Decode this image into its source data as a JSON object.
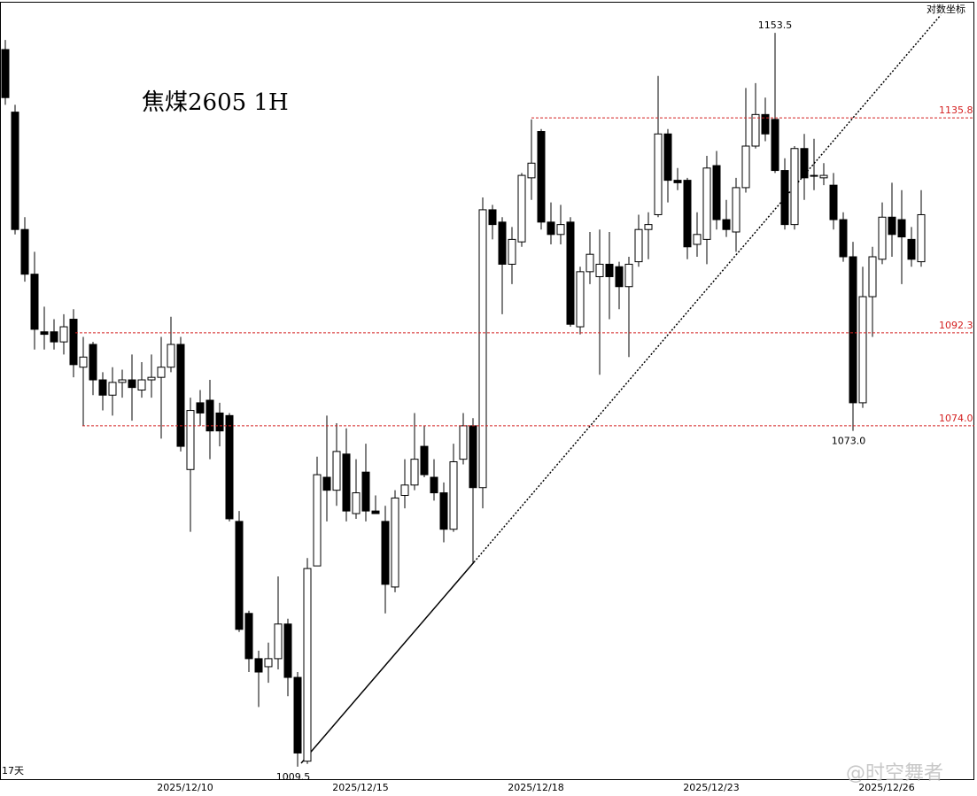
{
  "chart_data": {
    "type": "candlestick",
    "title": "焦煤2605 1H",
    "scale_label": "对数坐标",
    "log_scale": true,
    "ylim": [
      1007.2,
      1160.4
    ],
    "up_color": "#ffffff",
    "down_color": "#000000",
    "categories": [
      null,
      null,
      null,
      null,
      null,
      null,
      null,
      null,
      null,
      null,
      null,
      null,
      null,
      null,
      null,
      null,
      null,
      null,
      "2025/12/10",
      null,
      null,
      null,
      null,
      null,
      null,
      null,
      null,
      null,
      null,
      null,
      null,
      null,
      null,
      null,
      null,
      null,
      "2025/12/15",
      null,
      null,
      null,
      null,
      null,
      null,
      null,
      null,
      null,
      null,
      null,
      null,
      null,
      null,
      null,
      null,
      null,
      "2025/12/18",
      null,
      null,
      null,
      null,
      null,
      null,
      null,
      null,
      null,
      null,
      null,
      null,
      null,
      null,
      null,
      null,
      null,
      "2025/12/23",
      null,
      null,
      null,
      null,
      null,
      null,
      null,
      null,
      null,
      null,
      null,
      null,
      null,
      null,
      null,
      null,
      null,
      "2025/12/26",
      null,
      null,
      null,
      null
    ],
    "ohlc": [
      [
        1150,
        1152,
        1138.5,
        1140
      ],
      [
        1137,
        1138.5,
        1112,
        1113
      ],
      [
        1113,
        1115.5,
        1102.5,
        1104
      ],
      [
        1104,
        1108.5,
        1089,
        1093
      ],
      [
        1092.5,
        1097.5,
        1089,
        1092
      ],
      [
        1092.5,
        1095,
        1089,
        1090.5
      ],
      [
        1090.5,
        1096,
        1088,
        1093.5
      ],
      [
        1095,
        1097,
        1083.5,
        1086
      ],
      [
        1085.5,
        1091.5,
        1074,
        1087.5
      ],
      [
        1090,
        1090.5,
        1080,
        1083
      ],
      [
        1083,
        1084.5,
        1077,
        1080
      ],
      [
        1080,
        1085.5,
        1076,
        1082.5
      ],
      [
        1082.5,
        1085,
        1079.5,
        1083
      ],
      [
        1083,
        1088,
        1075,
        1081.5
      ],
      [
        1081,
        1086.5,
        1079.5,
        1083
      ],
      [
        1083,
        1088,
        1079.5,
        1083.5
      ],
      [
        1083.5,
        1091.5,
        1071.5,
        1085.5
      ],
      [
        1085.5,
        1095.5,
        1084.5,
        1090
      ],
      [
        1090,
        1091.5,
        1069,
        1070
      ],
      [
        1065.5,
        1079.5,
        1053.5,
        1077
      ],
      [
        1078.5,
        1081,
        1074,
        1076.5
      ],
      [
        1079,
        1083,
        1067.5,
        1073
      ],
      [
        1076.5,
        1078.5,
        1070,
        1073
      ],
      [
        1076,
        1076.5,
        1055.5,
        1056
      ],
      [
        1055.5,
        1057.5,
        1034.5,
        1035
      ],
      [
        1038,
        1038.5,
        1027,
        1029.5
      ],
      [
        1029.5,
        1031,
        1020.5,
        1027
      ],
      [
        1028,
        1032.5,
        1025,
        1029.5
      ],
      [
        1029.5,
        1045,
        1027.5,
        1036
      ],
      [
        1036,
        1037,
        1022.5,
        1026
      ],
      [
        1026,
        1027,
        1009.5,
        1012
      ],
      [
        1010.5,
        1048.5,
        1010,
        1046.5
      ],
      [
        1047,
        1068,
        1047,
        1064.5
      ],
      [
        1064,
        1076,
        1055.5,
        1061.5
      ],
      [
        1061.5,
        1074.5,
        1058.5,
        1069
      ],
      [
        1068.5,
        1073.5,
        1055.5,
        1057.5
      ],
      [
        1057,
        1067.5,
        1056,
        1061
      ],
      [
        1065,
        1070.5,
        1055.5,
        1057.5
      ],
      [
        1057.5,
        1060.5,
        1057,
        1057
      ],
      [
        1055.5,
        1058.5,
        1038,
        1043.5
      ],
      [
        1043,
        1061.5,
        1042,
        1060
      ],
      [
        1060.5,
        1067.5,
        1058,
        1062.5
      ],
      [
        1062.5,
        1076.5,
        1061.5,
        1067.5
      ],
      [
        1070,
        1074,
        1064,
        1064.5
      ],
      [
        1064,
        1067.5,
        1059.5,
        1061
      ],
      [
        1061,
        1063,
        1051.5,
        1054
      ],
      [
        1054,
        1070.5,
        1053.5,
        1067
      ],
      [
        1067.5,
        1076.5,
        1066.5,
        1074
      ],
      [
        1074,
        1075.5,
        1047.5,
        1062
      ],
      [
        1062,
        1119.5,
        1058,
        1117
      ],
      [
        1117,
        1118,
        1111,
        1114
      ],
      [
        1114.5,
        1115.5,
        1096,
        1106
      ],
      [
        1106,
        1113.5,
        1102,
        1111
      ],
      [
        1110.5,
        1124.5,
        1109.5,
        1124
      ],
      [
        1123.5,
        1135.5,
        1119,
        1126.5
      ],
      [
        1133,
        1133.5,
        1113,
        1114.5
      ],
      [
        1114.5,
        1118.5,
        1110,
        1112
      ],
      [
        1112,
        1118,
        1110,
        1114
      ],
      [
        1114.5,
        1115.5,
        1093.5,
        1094
      ],
      [
        1093.5,
        1105.5,
        1092,
        1104.5
      ],
      [
        1104.5,
        1112.5,
        1102,
        1108
      ],
      [
        1103.5,
        1113,
        1084,
        1106
      ],
      [
        1106,
        1112.5,
        1095,
        1103.5
      ],
      [
        1105.5,
        1106.5,
        1097,
        1101.5
      ],
      [
        1101.5,
        1107.5,
        1087.5,
        1106
      ],
      [
        1106.5,
        1116,
        1105.5,
        1113
      ],
      [
        1113,
        1116.5,
        1107,
        1114
      ],
      [
        1116,
        1144.5,
        1115.5,
        1132.5
      ],
      [
        1132.5,
        1133.5,
        1118.5,
        1123
      ],
      [
        1123,
        1125.5,
        1121,
        1122.5
      ],
      [
        1123,
        1123.5,
        1107,
        1109.5
      ],
      [
        1110,
        1116.5,
        1107.5,
        1112
      ],
      [
        1111,
        1128,
        1106,
        1125.5
      ],
      [
        1126,
        1129,
        1113,
        1115
      ],
      [
        1115,
        1119,
        1111.5,
        1113
      ],
      [
        1112.5,
        1123.5,
        1108.5,
        1121.5
      ],
      [
        1121.5,
        1142,
        1120.5,
        1130
      ],
      [
        1130,
        1143,
        1129.5,
        1136.5
      ],
      [
        1136.5,
        1140,
        1131,
        1132.5
      ],
      [
        1135.5,
        1153.5,
        1124.5,
        1125
      ],
      [
        1125,
        1127.5,
        1113,
        1114
      ],
      [
        1114,
        1130,
        1113,
        1129.5
      ],
      [
        1129.5,
        1132.5,
        1119,
        1123.5
      ],
      [
        1124,
        1131.5,
        1121,
        1124
      ],
      [
        1123.5,
        1126.5,
        1122,
        1124
      ],
      [
        1122,
        1124.5,
        1113,
        1115
      ],
      [
        1115,
        1116.5,
        1106.5,
        1107.5
      ],
      [
        1107.5,
        1110.5,
        1073,
        1078.5
      ],
      [
        1078.5,
        1105.5,
        1077.5,
        1099.5
      ],
      [
        1099.5,
        1109.5,
        1091.5,
        1107.5
      ],
      [
        1107,
        1118.5,
        1106,
        1115.5
      ],
      [
        1115.5,
        1122.5,
        1107.5,
        1112
      ],
      [
        1115,
        1121,
        1102,
        1111.5
      ],
      [
        1111,
        1113.5,
        1105.5,
        1107
      ],
      [
        1106.5,
        1121,
        1105.5,
        1116
      ]
    ],
    "hlines": [
      {
        "value": 1135.8,
        "label": "1135.8"
      },
      {
        "value": 1092.3,
        "label": "1092.3"
      },
      {
        "value": 1074,
        "label": "1074.0"
      }
    ],
    "hline_color": "#d42020",
    "high_label": 1153.5,
    "low_labels": [
      {
        "value": 1073,
        "label": "1073.0"
      },
      1009.5
    ],
    "period_note": "17天",
    "watermark": "@时空舞者"
  }
}
